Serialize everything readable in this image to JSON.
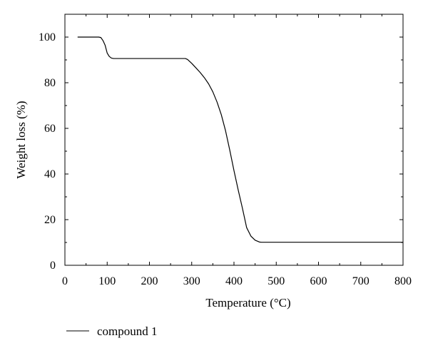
{
  "chart_data": {
    "type": "line",
    "xlabel": "Temperature (°C)",
    "ylabel": "Weight loss (%)",
    "xlim": [
      0,
      800
    ],
    "ylim": [
      0,
      110
    ],
    "xticks": [
      0,
      100,
      200,
      300,
      400,
      500,
      600,
      700,
      800
    ],
    "yticks": [
      0,
      20,
      40,
      60,
      80,
      100
    ],
    "grid": false,
    "legend_position": "bottom-left",
    "series": [
      {
        "name": "compound 1",
        "color": "#000000",
        "x": [
          30,
          80,
          85,
          90,
          95,
          100,
          105,
          110,
          115,
          120,
          150,
          200,
          250,
          285,
          290,
          300,
          310,
          320,
          330,
          340,
          350,
          360,
          370,
          380,
          390,
          400,
          410,
          420,
          430,
          440,
          450,
          460,
          465,
          470,
          500,
          600,
          700,
          800
        ],
        "y": [
          100,
          100,
          99.8,
          98.5,
          96.5,
          93,
          91.5,
          90.8,
          90.6,
          90.6,
          90.6,
          90.6,
          90.6,
          90.6,
          90.2,
          88.5,
          86.5,
          84.5,
          82.2,
          79.5,
          76,
          71.5,
          66,
          59,
          50.5,
          41.5,
          33,
          25,
          16.5,
          12.8,
          11,
          10.2,
          10.1,
          10.1,
          10.1,
          10.1,
          10.1,
          10.1
        ]
      }
    ]
  }
}
